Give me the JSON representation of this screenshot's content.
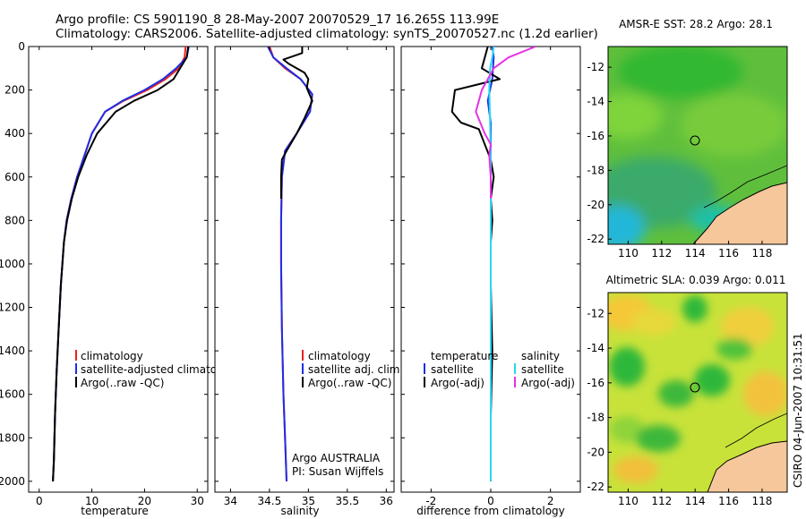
{
  "header": {
    "title_line1": "Argo profile: CS 5901190_8 28-May-2007 20070529_17 16.265S 113.99E",
    "title_line2": "Climatology: CARS2006. Satellite-adjusted climatology: synTS_20070527.nc (1.2d earlier)"
  },
  "footer": {
    "stamp": "CSIRO 04-Jun-2007 10:31:51"
  },
  "colors": {
    "climatology": "#e8231e",
    "satellite": "#1f2ee6",
    "argo": "#000000",
    "satellite_diff_salinity": "#27d8f0",
    "argo_diff_salinity": "#e632e6",
    "land": "#f5c79a",
    "coast": "#000000"
  },
  "chart_data": [
    {
      "id": "temperature",
      "type": "line",
      "xlabel": "temperature",
      "ylabel": "",
      "xlim": [
        -2,
        32
      ],
      "ylim": [
        2050,
        0
      ],
      "xticks": [
        0,
        10,
        20,
        30
      ],
      "yticks": [
        0,
        200,
        400,
        600,
        800,
        1000,
        1200,
        1400,
        1600,
        1800,
        2000
      ],
      "legend": [
        "climatology",
        "satellite-adjusted climatolog",
        "Argo(..raw -QC)"
      ],
      "legend_colors": [
        "#e8231e",
        "#1f2ee6",
        "#000000"
      ],
      "series": [
        {
          "name": "climatology",
          "color": "#e8231e",
          "x": [
            27.8,
            27.6,
            26.5,
            24.0,
            20.5,
            16.0,
            12.5,
            10.0,
            8.6,
            7.2,
            6.1,
            5.2,
            4.7,
            4.1,
            3.7,
            3.3,
            3.0,
            2.8,
            2.6
          ],
          "y": [
            0,
            50,
            100,
            150,
            200,
            250,
            300,
            400,
            500,
            600,
            700,
            800,
            900,
            1100,
            1300,
            1500,
            1700,
            1900,
            2000
          ]
        },
        {
          "name": "satellite-adjusted climatolog",
          "color": "#1f2ee6",
          "x": [
            28.4,
            28.0,
            26.0,
            23.5,
            20.0,
            15.8,
            12.5,
            10.0,
            8.6,
            7.2,
            6.1,
            5.2,
            4.7,
            4.1,
            3.7,
            3.3,
            3.0,
            2.8,
            2.6
          ],
          "y": [
            0,
            50,
            100,
            150,
            200,
            250,
            300,
            400,
            500,
            600,
            700,
            800,
            900,
            1100,
            1300,
            1500,
            1700,
            1900,
            2000
          ]
        },
        {
          "name": "Argo(..raw -QC)",
          "color": "#000000",
          "x": [
            28.3,
            28.0,
            27.5,
            25.5,
            22.5,
            18.0,
            14.5,
            11.0,
            9.0,
            7.4,
            6.2,
            5.3,
            4.7,
            4.1,
            3.7,
            3.3,
            3.0,
            2.8,
            2.6
          ],
          "y": [
            0,
            50,
            70,
            150,
            200,
            250,
            300,
            400,
            500,
            600,
            700,
            800,
            900,
            1100,
            1300,
            1500,
            1700,
            1900,
            2000
          ]
        }
      ]
    },
    {
      "id": "salinity",
      "type": "line",
      "xlabel": "salinity",
      "xlim": [
        33.8,
        36.1
      ],
      "ylim": [
        2050,
        0
      ],
      "xticks": [
        34,
        34.5,
        35,
        35.5,
        36
      ],
      "yticks": [
        0,
        200,
        400,
        600,
        800,
        1000,
        1200,
        1400,
        1600,
        1800,
        2000
      ],
      "legend": [
        "climatology",
        "satellite adj. clim.",
        "Argo(..raw -QC)"
      ],
      "legend_colors": [
        "#e8231e",
        "#1f2ee6",
        "#000000"
      ],
      "annotation": [
        "Argo AUSTRALIA",
        "PI: Susan Wijffels"
      ],
      "series": [
        {
          "name": "climatology",
          "color": "#e8231e",
          "x": [
            34.5,
            34.55,
            34.7,
            34.9,
            35.05,
            35.02,
            34.85,
            34.7,
            34.66,
            34.65,
            34.65,
            34.66,
            34.68,
            34.7,
            34.72
          ],
          "y": [
            0,
            50,
            100,
            150,
            220,
            300,
            400,
            480,
            600,
            800,
            1000,
            1300,
            1600,
            1800,
            2000
          ]
        },
        {
          "name": "satellite adj. clim.",
          "color": "#1f2ee6",
          "x": [
            34.48,
            34.55,
            34.72,
            34.9,
            35.05,
            35.02,
            34.85,
            34.7,
            34.66,
            34.65,
            34.65,
            34.66,
            34.68,
            34.7,
            34.72
          ],
          "y": [
            0,
            50,
            100,
            150,
            220,
            300,
            400,
            480,
            600,
            800,
            1000,
            1300,
            1600,
            1800,
            2000
          ]
        },
        {
          "name": "Argo(..raw -QC)",
          "color": "#000000",
          "x": [
            34.92,
            34.92,
            34.68,
            34.75,
            34.95,
            35.0,
            34.98,
            35.05,
            34.95,
            34.85,
            34.72,
            34.66,
            34.65,
            34.65
          ],
          "y": [
            0,
            30,
            60,
            80,
            120,
            150,
            190,
            250,
            330,
            400,
            480,
            520,
            600,
            700
          ]
        }
      ]
    },
    {
      "id": "difference",
      "type": "line",
      "xlabel": "difference from climatology",
      "xlim": [
        -3,
        3
      ],
      "ylim": [
        2050,
        0
      ],
      "xticks": [
        -2,
        0,
        2
      ],
      "yticks": [
        0,
        200,
        400,
        600,
        800,
        1000,
        1200,
        1400,
        1600,
        1800,
        2000
      ],
      "legend_temperature": [
        "temperature",
        "satellite",
        "Argo(-adj)"
      ],
      "legend_salinity": [
        "salinity",
        "satellite",
        "Argo(-adj)"
      ],
      "series": [
        {
          "name": "temperature satellite",
          "color": "#1f2ee6",
          "x": [
            0.05,
            0.1,
            0.05,
            -0.1,
            0.0,
            0.0,
            0.0,
            0.0,
            0.0,
            0.0,
            0.0
          ],
          "y": [
            0,
            50,
            150,
            250,
            350,
            500,
            700,
            1000,
            1400,
            1800,
            2000
          ]
        },
        {
          "name": "temperature Argo(-adj)",
          "color": "#000000",
          "x": [
            -0.1,
            -0.3,
            0.3,
            -1.2,
            -1.3,
            -1.0,
            -0.4,
            -0.2,
            0.0,
            0.1,
            0.0,
            0.05,
            0.0,
            0.0,
            0.05,
            0.0,
            0.0
          ],
          "y": [
            0,
            100,
            150,
            200,
            300,
            350,
            380,
            450,
            520,
            600,
            700,
            800,
            900,
            1100,
            1400,
            1700,
            2000
          ]
        },
        {
          "name": "salinity satellite",
          "color": "#27d8f0",
          "x": [
            0.1,
            0.05,
            -0.02,
            -0.05,
            -0.03,
            0.0,
            0.0,
            0.0,
            0.0,
            0.0
          ],
          "y": [
            0,
            50,
            100,
            200,
            300,
            500,
            800,
            1200,
            1600,
            2000
          ]
        },
        {
          "name": "salinity Argo(-adj)",
          "color": "#e632e6",
          "x": [
            1.5,
            0.6,
            0.1,
            -0.1,
            -0.3,
            -0.4,
            -0.5,
            -0.2,
            0.0,
            -0.05,
            0.0,
            0.0
          ],
          "y": [
            0,
            50,
            100,
            150,
            200,
            250,
            300,
            400,
            450,
            500,
            600,
            700
          ]
        }
      ]
    },
    {
      "id": "sst_map",
      "type": "heatmap",
      "title": "AMSR-E SST: 28.2 Argo: 28.1",
      "xlim": [
        108.8,
        119.5
      ],
      "ylim": [
        -22.3,
        -10.8
      ],
      "xticks": [
        110,
        112,
        114,
        116,
        118
      ],
      "yticks": [
        -12,
        -14,
        -16,
        -18,
        -20,
        -22
      ],
      "marker": {
        "lon": 113.99,
        "lat": -16.265
      }
    },
    {
      "id": "sla_map",
      "type": "heatmap",
      "title": "Altimetric SLA: 0.039 Argo: 0.011",
      "xlim": [
        108.8,
        119.5
      ],
      "ylim": [
        -22.3,
        -10.8
      ],
      "xticks": [
        110,
        112,
        114,
        116,
        118
      ],
      "yticks": [
        -12,
        -14,
        -16,
        -18,
        -20,
        -22
      ],
      "marker": {
        "lon": 113.99,
        "lat": -16.265
      }
    }
  ]
}
